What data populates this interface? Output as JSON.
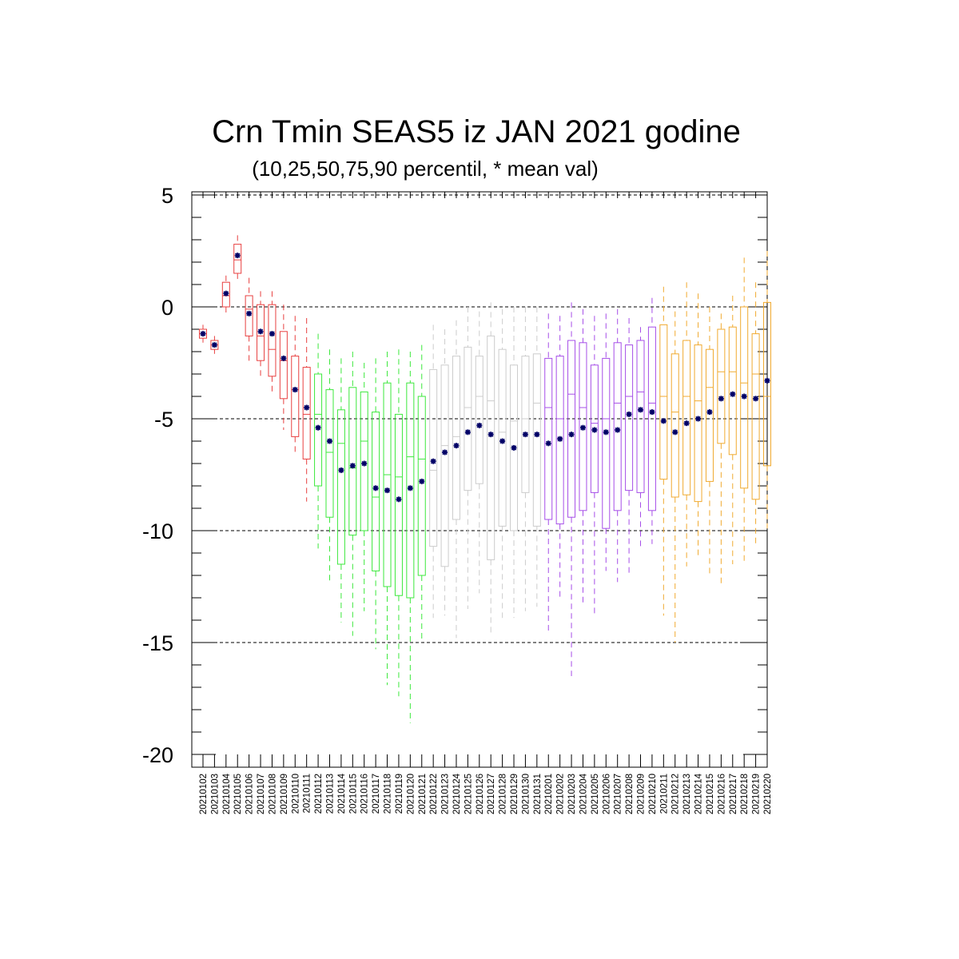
{
  "chart_data": {
    "type": "box",
    "title": "Crn Tmin SEAS5 iz JAN 2021 godine",
    "subtitle": "(10,25,50,75,90 percentil, * mean val)",
    "xlabel": "",
    "ylabel": "",
    "ylim": [
      -20.5,
      5.1
    ],
    "yticks": [
      5,
      0,
      -5,
      -10,
      -15,
      -20
    ],
    "ytick_labels": [
      "5",
      "0",
      "-5",
      "-10",
      "-15",
      "-20"
    ],
    "grid_lines_y": [
      5,
      0,
      -5,
      -10,
      -15
    ],
    "grid": "dashed horizontal",
    "colors": {
      "red": "#e84040",
      "green": "#3ce83c",
      "gray": "#cccccc",
      "purple": "#a64ee8",
      "orange": "#f0aa30",
      "mean": "#000066"
    },
    "categories": [
      "20210102",
      "20210103",
      "20210104",
      "20210105",
      "20210106",
      "20210107",
      "20210108",
      "20210109",
      "20210110",
      "20210111",
      "20210112",
      "20210113",
      "20210114",
      "20210115",
      "20210116",
      "20210117",
      "20210118",
      "20210119",
      "20210120",
      "20210121",
      "20210122",
      "20210123",
      "20210124",
      "20210125",
      "20210126",
      "20210127",
      "20210128",
      "20210129",
      "20210130",
      "20210131",
      "20210201",
      "20210202",
      "20210203",
      "20210204",
      "20210205",
      "20210206",
      "20210207",
      "20210208",
      "20210209",
      "20210210",
      "20210211",
      "20210212",
      "20210213",
      "20210214",
      "20210215",
      "20210216",
      "20210217",
      "20210218",
      "20210219",
      "20210220"
    ],
    "box_colors": [
      "red",
      "red",
      "red",
      "red",
      "red",
      "red",
      "red",
      "red",
      "red",
      "red",
      "green",
      "green",
      "green",
      "green",
      "green",
      "green",
      "green",
      "green",
      "green",
      "green",
      "gray",
      "gray",
      "gray",
      "gray",
      "gray",
      "gray",
      "gray",
      "gray",
      "gray",
      "gray",
      "purple",
      "purple",
      "purple",
      "purple",
      "purple",
      "purple",
      "purple",
      "purple",
      "purple",
      "purple",
      "orange",
      "orange",
      "orange",
      "orange",
      "orange",
      "orange",
      "orange",
      "orange",
      "orange",
      "orange"
    ],
    "p10": [
      -1.6,
      -2.1,
      -0.3,
      1.2,
      -2.5,
      -3.2,
      -3.8,
      -5.5,
      -6.5,
      -8.7,
      -10.8,
      -12.3,
      -14.1,
      -14.7,
      -13.6,
      -15.3,
      -16.9,
      -17.4,
      -18.6,
      -14.9,
      -13.9,
      -13.8,
      -14.8,
      -13.5,
      -12.8,
      -14.6,
      -13.9,
      -13.9,
      -13.6,
      -13.4,
      -14.6,
      -13.1,
      -16.5,
      -13.3,
      -13.8,
      -11.8,
      -12.3,
      -12.0,
      -10.8,
      -10.6,
      -13.8,
      -15.0,
      -11.6,
      -11.2,
      -12.0,
      -12.4,
      -11.5,
      -11.4,
      -10.7,
      -9.9
    ],
    "p25": [
      -1.4,
      -1.9,
      0.0,
      1.5,
      -1.3,
      -2.4,
      -3.1,
      -4.1,
      -5.8,
      -6.8,
      -8.0,
      -9.4,
      -11.5,
      -10.2,
      -10.0,
      -11.8,
      -12.5,
      -12.9,
      -13.0,
      -12.0,
      -10.7,
      -11.6,
      -9.5,
      -8.2,
      -7.9,
      -11.3,
      -9.8,
      -10.0,
      -8.3,
      -9.8,
      -9.5,
      -9.7,
      -9.4,
      -9.1,
      -8.3,
      -9.9,
      -9.1,
      -8.2,
      -8.3,
      -9.1,
      -7.7,
      -8.5,
      -8.4,
      -8.7,
      -7.8,
      -6.1,
      -6.6,
      -8.1,
      -8.6,
      -7.1
    ],
    "p50": [
      -1.2,
      -1.7,
      0.5,
      2.1,
      -0.1,
      -1.3,
      -1.9,
      -2.4,
      -3.7,
      -4.8,
      -4.8,
      -6.5,
      -6.1,
      -7.2,
      -6.0,
      -8.5,
      -7.5,
      -7.6,
      -6.7,
      -6.8,
      -7.3,
      -6.2,
      -5.8,
      -4.5,
      -4.0,
      -4.2,
      -5.6,
      -5.1,
      -5.0,
      -4.3,
      -4.5,
      -5.0,
      -3.9,
      -4.5,
      -5.2,
      -5.0,
      -4.3,
      -4.0,
      -3.8,
      -4.3,
      -4.0,
      -4.7,
      -4.0,
      -4.2,
      -3.6,
      -2.9,
      -2.9,
      -3.4,
      -3.0,
      -4.0
    ],
    "p75": [
      -1.0,
      -1.5,
      1.1,
      2.8,
      0.5,
      0.1,
      0.1,
      -1.1,
      -2.2,
      -2.7,
      -3.0,
      -3.7,
      -4.6,
      -3.6,
      -3.8,
      -4.7,
      -3.4,
      -4.8,
      -3.4,
      -4.0,
      -2.8,
      -2.6,
      -2.2,
      -1.8,
      -2.2,
      -1.3,
      -1.9,
      -2.6,
      -2.2,
      -2.1,
      -2.3,
      -2.2,
      -1.5,
      -1.6,
      -2.6,
      -2.3,
      -1.6,
      -1.7,
      -1.5,
      -0.9,
      -0.8,
      -2.1,
      -1.5,
      -1.7,
      -1.9,
      -1.0,
      -0.9,
      0.0,
      -1.2,
      0.2
    ],
    "p90": [
      -0.8,
      -1.3,
      1.4,
      3.2,
      1.3,
      0.7,
      0.7,
      0.1,
      -0.4,
      -0.5,
      -1.2,
      -1.9,
      -2.3,
      -2.0,
      -2.5,
      -2.3,
      -2.0,
      -1.9,
      -2.0,
      -1.7,
      -0.8,
      -1.0,
      -0.6,
      0.0,
      -0.2,
      0.2,
      -0.1,
      0.0,
      0.0,
      0.0,
      -0.3,
      -0.4,
      0.2,
      -0.1,
      -0.4,
      -0.3,
      -0.1,
      -0.5,
      -0.9,
      0.4,
      0.9,
      -0.2,
      1.1,
      0.6,
      0.0,
      -0.3,
      0.5,
      2.2,
      1.1,
      2.5
    ],
    "mean": [
      -1.2,
      -1.7,
      0.6,
      2.3,
      -0.3,
      -1.1,
      -1.2,
      -2.3,
      -3.7,
      -4.5,
      -5.4,
      -6.0,
      -7.3,
      -7.1,
      -7.0,
      -8.1,
      -8.2,
      -8.6,
      -8.1,
      -7.8,
      -6.9,
      -6.5,
      -6.2,
      -5.6,
      -5.3,
      -5.7,
      -6.0,
      -6.3,
      -5.7,
      -5.7,
      -6.1,
      -5.9,
      -5.7,
      -5.4,
      -5.5,
      -5.6,
      -5.5,
      -4.8,
      -4.6,
      -4.7,
      -5.1,
      -5.6,
      -5.2,
      -5.0,
      -4.7,
      -4.1,
      -3.9,
      -4.0,
      -4.1,
      -3.3
    ]
  }
}
